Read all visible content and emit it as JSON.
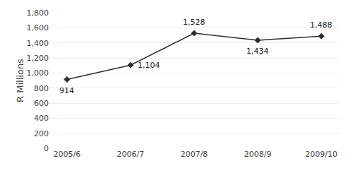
{
  "chart_data": {
    "type": "line",
    "categories": [
      "2005/6",
      "2006/7",
      "2007/8",
      "2008/9",
      "2009/10"
    ],
    "values": [
      914,
      1104,
      1528,
      1434,
      1488
    ],
    "value_labels": [
      "914",
      "1,104",
      "1,528",
      "1,434",
      "1,488"
    ],
    "data_labels": true,
    "ylabel": "R Millions",
    "ylim": [
      0,
      1800
    ],
    "yticks": [
      0,
      200,
      400,
      600,
      800,
      {
        "value": 1000,
        "label": "1,000"
      },
      {
        "value": 1200,
        "label": "1,200"
      },
      {
        "value": 1400,
        "label": "1,400"
      },
      {
        "value": 1600,
        "label": "1,600"
      },
      {
        "value": 1800,
        "label": "1,800"
      }
    ],
    "grid": true,
    "color": "#2d2d2d",
    "marker": "diamond"
  }
}
